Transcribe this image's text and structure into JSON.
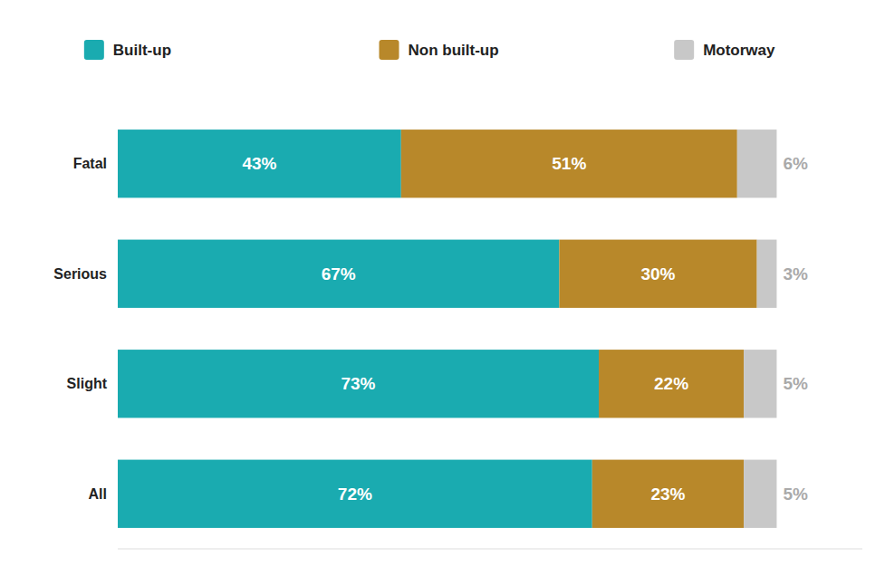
{
  "chart_data": {
    "type": "bar",
    "orientation": "horizontal",
    "stacked": true,
    "categories": [
      "Fatal",
      "Serious",
      "Slight",
      "All"
    ],
    "series": [
      {
        "name": "Built-up",
        "color": "#1aabb0",
        "values": [
          43,
          67,
          73,
          72
        ],
        "value_labels": [
          "43%",
          "67%",
          "73%",
          "72%"
        ]
      },
      {
        "name": "Non built-up",
        "color": "#b8882a",
        "values": [
          51,
          30,
          22,
          23
        ],
        "value_labels": [
          "51%",
          "30%",
          "22%",
          "23%"
        ]
      },
      {
        "name": "Motorway",
        "color": "#c8c8c8",
        "values": [
          6,
          3,
          5,
          5
        ],
        "value_labels": [
          "6%",
          "3%",
          "5%",
          "5%"
        ]
      }
    ],
    "xlim": [
      0,
      113
    ],
    "tick_labels": false,
    "data_labels": true,
    "legend": "top"
  }
}
